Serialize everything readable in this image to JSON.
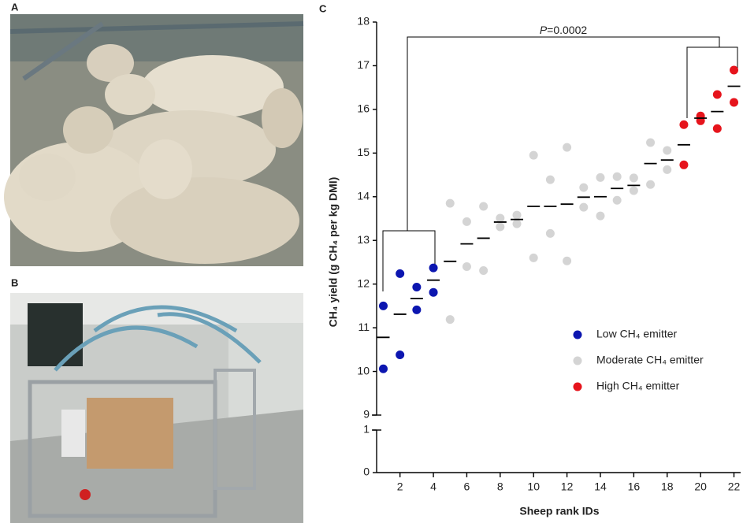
{
  "panels": [
    "A",
    "B",
    "C"
  ],
  "chart_data": {
    "type": "scatter",
    "ylabel": "CH₄ yield (g CH₄ per kg DMI)",
    "xlabel": "Sheep rank IDs",
    "annotation": {
      "var": "P",
      "text": "=0.0002"
    },
    "xlim": [
      0.6,
      22.4
    ],
    "xticks": [
      2,
      4,
      6,
      8,
      10,
      12,
      14,
      16,
      18,
      20,
      22
    ],
    "ylim": [
      0,
      18
    ],
    "ybreak": [
      1,
      9
    ],
    "yticks": [
      0,
      1,
      9,
      10,
      11,
      12,
      13,
      14,
      15,
      16,
      17,
      18
    ],
    "series": [
      {
        "name": "Low CH₄ emitter",
        "color": "#0c16b0",
        "x": [
          1,
          1,
          2,
          2,
          3,
          3,
          4,
          4
        ],
        "values": [
          11.5,
          10.06,
          12.24,
          10.38,
          11.93,
          11.41,
          12.37,
          11.81
        ]
      },
      {
        "name": "Moderate CH₄ emitter",
        "color": "#d4d4d4",
        "x": [
          5,
          5,
          6,
          6,
          7,
          7,
          8,
          8,
          9,
          9,
          10,
          10,
          11,
          11,
          12,
          12,
          13,
          13,
          14,
          14,
          15,
          15,
          16,
          16,
          17,
          17,
          18,
          18
        ],
        "values": [
          13.85,
          11.19,
          13.43,
          12.4,
          13.78,
          12.31,
          13.51,
          13.31,
          13.58,
          13.38,
          14.95,
          12.6,
          14.39,
          13.16,
          15.13,
          12.53,
          14.21,
          13.76,
          14.44,
          13.56,
          14.46,
          13.92,
          14.43,
          14.14,
          15.24,
          14.28,
          15.06,
          14.62
        ]
      },
      {
        "name": "High CH₄ emitter",
        "color": "#e6141c",
        "x": [
          19,
          19,
          20,
          20,
          21,
          21,
          22,
          22
        ],
        "values": [
          15.65,
          14.73,
          15.74,
          15.85,
          16.34,
          15.56,
          16.9,
          16.16
        ]
      }
    ],
    "means": {
      "x": [
        1,
        2,
        3,
        4,
        5,
        6,
        7,
        8,
        9,
        10,
        11,
        12,
        13,
        14,
        15,
        16,
        17,
        18,
        19,
        20,
        21,
        22
      ],
      "values": [
        10.78,
        11.31,
        11.67,
        12.09,
        12.52,
        12.92,
        13.05,
        13.42,
        13.48,
        13.78,
        13.78,
        13.83,
        13.99,
        14.0,
        14.19,
        14.26,
        14.76,
        14.84,
        15.19,
        15.8,
        15.95,
        16.53
      ],
      "color": "#000000"
    }
  }
}
